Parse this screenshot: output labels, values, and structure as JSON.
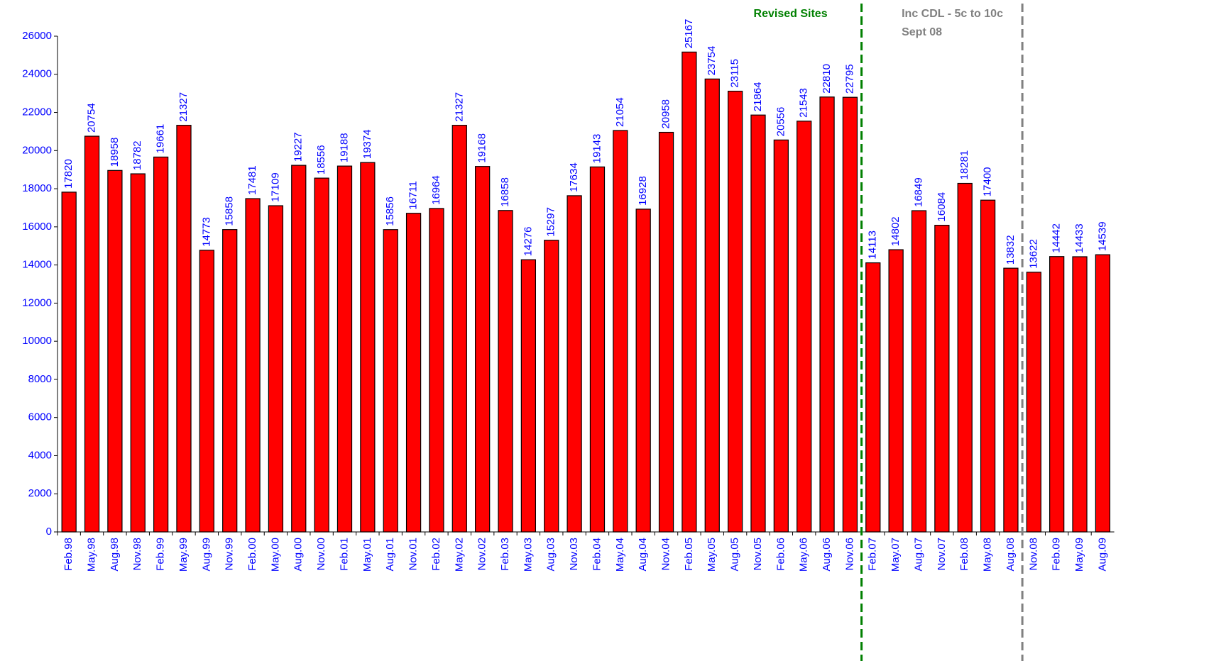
{
  "chart_data": {
    "type": "bar",
    "categories": [
      "Feb.98",
      "May.98",
      "Aug.98",
      "Nov.98",
      "Feb.99",
      "May.99",
      "Aug.99",
      "Nov.99",
      "Feb.00",
      "May.00",
      "Aug.00",
      "Nov.00",
      "Feb.01",
      "May.01",
      "Aug.01",
      "Nov.01",
      "Feb.02",
      "May.02",
      "Nov.02",
      "Feb.03",
      "May.03",
      "Aug.03",
      "Nov.03",
      "Feb.04",
      "May.04",
      "Aug.04",
      "Nov.04",
      "Feb.05",
      "May.05",
      "Aug.05",
      "Nov.05",
      "Feb.06",
      "May.06",
      "Aug.06",
      "Nov.06",
      "Feb.07",
      "May.07",
      "Aug.07",
      "Nov.07",
      "Feb.08",
      "May.08",
      "Aug.08",
      "Nov.08",
      "Feb.09",
      "May.09",
      "Aug.09"
    ],
    "values": [
      17820,
      20754,
      18958,
      18782,
      19661,
      21327,
      14773,
      15858,
      17481,
      17109,
      19227,
      18556,
      19188,
      19374,
      15856,
      16711,
      16964,
      21327,
      19168,
      16858,
      14276,
      15297,
      17634,
      19143,
      21054,
      16928,
      20958,
      25167,
      23754,
      23115,
      21864,
      20556,
      21543,
      22810,
      22795,
      14113,
      14802,
      16849,
      16084,
      18281,
      17400,
      13832,
      13622,
      14442,
      14433,
      14539
    ],
    "color": "#ff0000",
    "ylim": [
      0,
      26000
    ],
    "yticks": [
      0,
      2000,
      4000,
      6000,
      8000,
      10000,
      12000,
      14000,
      16000,
      18000,
      20000,
      22000,
      24000,
      26000
    ],
    "grid": false,
    "annotations": [
      {
        "text": "Revised Sites",
        "color": "#008000"
      },
      {
        "text": "Inc CDL - 5c to 10c",
        "text2": "Sept 08",
        "color": "#808080"
      }
    ]
  }
}
